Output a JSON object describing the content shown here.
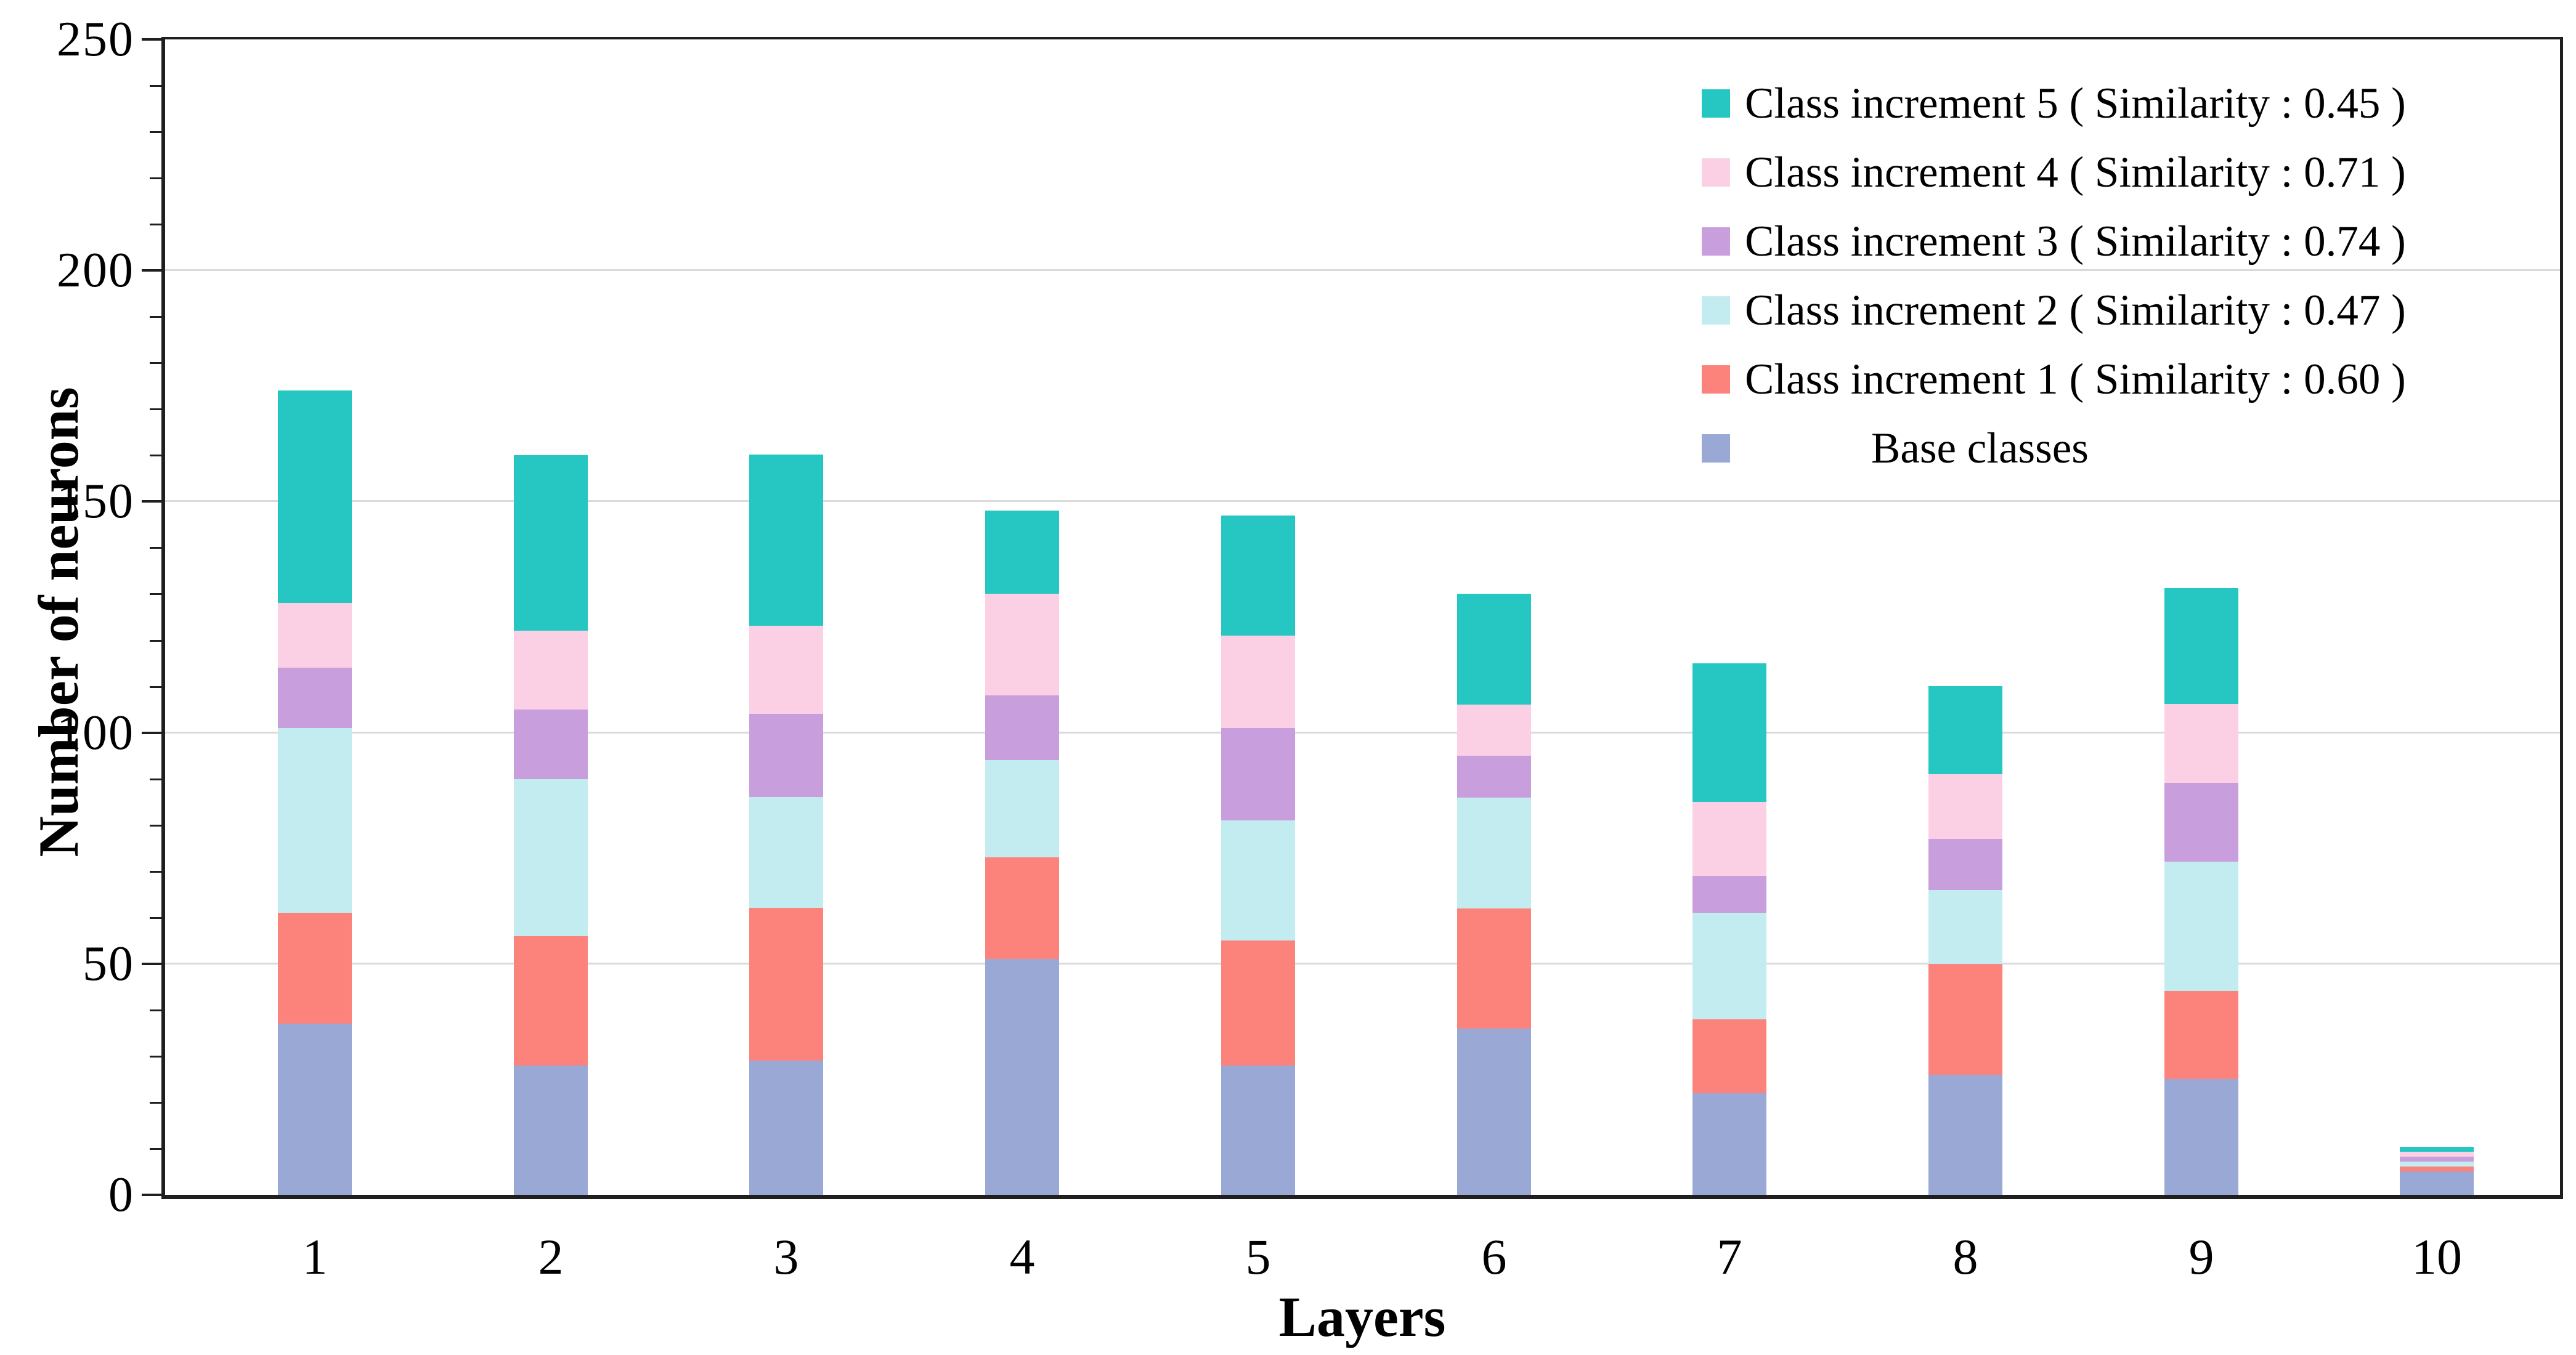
{
  "chart_data": {
    "type": "bar",
    "stacked": true,
    "title": "",
    "xlabel": "Layers",
    "ylabel": "Number of neurons",
    "categories": [
      "1",
      "2",
      "3",
      "4",
      "5",
      "6",
      "7",
      "8",
      "9",
      "10"
    ],
    "ylim": [
      0,
      250
    ],
    "yticks": [
      0,
      50,
      100,
      150,
      200,
      250
    ],
    "y_minor_step": 10,
    "grid": "horizontal",
    "gridline_color": "#DADADA",
    "axis_color": "#1f1f1f",
    "legend_position": "top-right-inside",
    "legend_order_top_to_bottom": [
      "Class increment 5 ( Similarity : 0.45 )",
      "Class increment 4 ( Similarity : 0.71 )",
      "Class increment 3 ( Similarity : 0.74 )",
      "Class increment 2 ( Similarity : 0.47 )",
      "Class increment 1 ( Similarity : 0.60 )",
      "Base classes"
    ],
    "series": [
      {
        "name": "Base classes",
        "color": "#9AA8D6",
        "values": [
          37,
          28,
          29,
          51,
          28,
          36,
          22,
          26,
          25,
          5
        ]
      },
      {
        "name": "Class increment 1 ( Similarity : 0.60 )",
        "color": "#FB837B",
        "values": [
          24,
          28,
          33,
          22,
          27,
          26,
          16,
          24,
          19,
          1
        ]
      },
      {
        "name": "Class increment 2 ( Similarity : 0.47 )",
        "color": "#C2ECF0",
        "values": [
          40,
          34,
          24,
          21,
          26,
          24,
          23,
          16,
          28,
          1
        ]
      },
      {
        "name": "Class increment 3 ( Similarity : 0.74 )",
        "color": "#C99EDC",
        "values": [
          13,
          15,
          18,
          14,
          20,
          9,
          8,
          11,
          17,
          1
        ]
      },
      {
        "name": "Class increment 4 ( Similarity : 0.71 )",
        "color": "#FBD0E5",
        "values": [
          14,
          17,
          19,
          22,
          20,
          11,
          16,
          14,
          17,
          1
        ]
      },
      {
        "name": "Class increment 5 ( Similarity : 0.45 )",
        "color": "#26C7C2",
        "values": [
          46,
          38,
          37,
          18,
          26,
          24,
          30,
          19,
          25,
          1
        ]
      }
    ],
    "bar_totals": [
      174,
      160,
      160,
      148,
      147,
      130,
      115,
      110,
      131,
      10
    ]
  }
}
